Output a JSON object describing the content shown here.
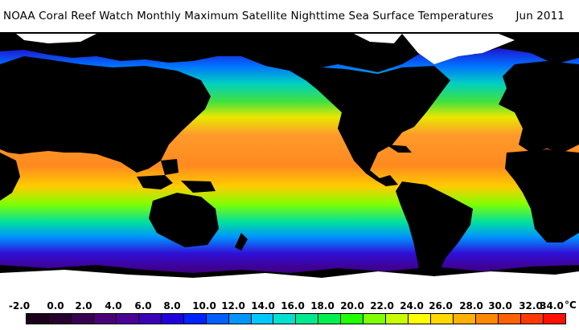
{
  "header": {
    "title": "NOAA Coral Reef Watch Monthly Maximum Satellite Nighttime Sea Surface Temperatures",
    "date": "Jun 2011"
  },
  "legend": {
    "labels": [
      "-2.0",
      "0.0",
      "2.0",
      "4.0",
      "6.0",
      "8.0",
      "10.0",
      "12.0",
      "14.0",
      "16.0",
      "18.0",
      "20.0",
      "22.0",
      "24.0",
      "26.0",
      "28.0",
      "30.0",
      "32.0",
      "34.0"
    ],
    "unit": "°C",
    "colors": [
      "#1a001a",
      "#2a0030",
      "#3a0050",
      "#4a0078",
      "#4b0096",
      "#3c00b8",
      "#2000dc",
      "#0022ff",
      "#0060ff",
      "#0096ff",
      "#00c8ff",
      "#00e0d0",
      "#00e890",
      "#00f050",
      "#20ff00",
      "#80ff00",
      "#c8ff00",
      "#ffff00",
      "#ffd800",
      "#ffb000",
      "#ff8800",
      "#ff6000",
      "#ff3800",
      "#ff1000"
    ]
  },
  "colors": {
    "land": "#000000",
    "ice": "#ffffff",
    "tropical": "#ff9a2a",
    "subtropical": "#f0e000",
    "temperate": "#40e040",
    "cool": "#00b0ff",
    "cold": "#4020e0",
    "polar": "#3a0080"
  }
}
